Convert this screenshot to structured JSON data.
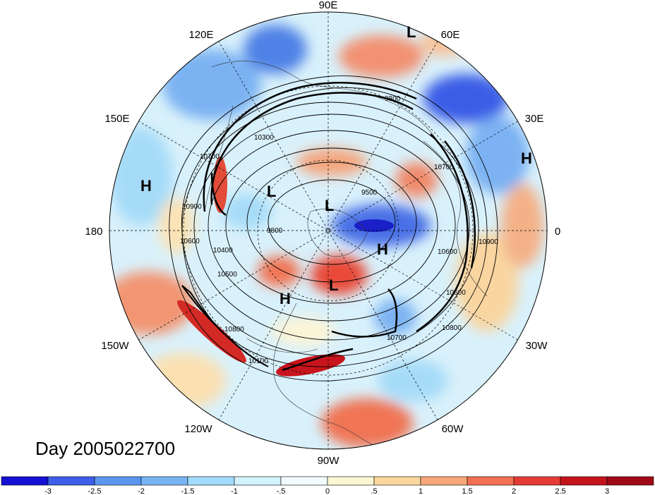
{
  "longitude_labels": [
    "90E",
    "60E",
    "30E",
    "0",
    "30W",
    "60W",
    "90W",
    "120W",
    "150W",
    "180",
    "150E",
    "120E"
  ],
  "pressure_centers": [
    "L",
    "H",
    "H",
    "L",
    "L",
    "H",
    "H",
    "L"
  ],
  "contour_labels": [
    "9800",
    "10300",
    "10700",
    "10900",
    "10600",
    "9500",
    "9800",
    "10400",
    "10500",
    "10600",
    "10800",
    "10700",
    "10900",
    "10100",
    "10800",
    "10700",
    "10600"
  ],
  "date_text": "Day 2005022700",
  "colorbar": {
    "tick_labels": [
      "-3",
      "-2.5",
      "-2",
      "-1.5",
      "-1",
      "-.5",
      "0",
      ".5",
      "1",
      "1.5",
      "2",
      "2.5",
      "3"
    ],
    "colors": [
      "#1410d4",
      "#3c5ee8",
      "#5a96f0",
      "#78b4f4",
      "#a2dcfa",
      "#d2f2fc",
      "#f0fcfe",
      "#fcf6d2",
      "#fad69e",
      "#f6a878",
      "#f07050",
      "#e43c34",
      "#c4141c",
      "#a00a18"
    ]
  }
}
